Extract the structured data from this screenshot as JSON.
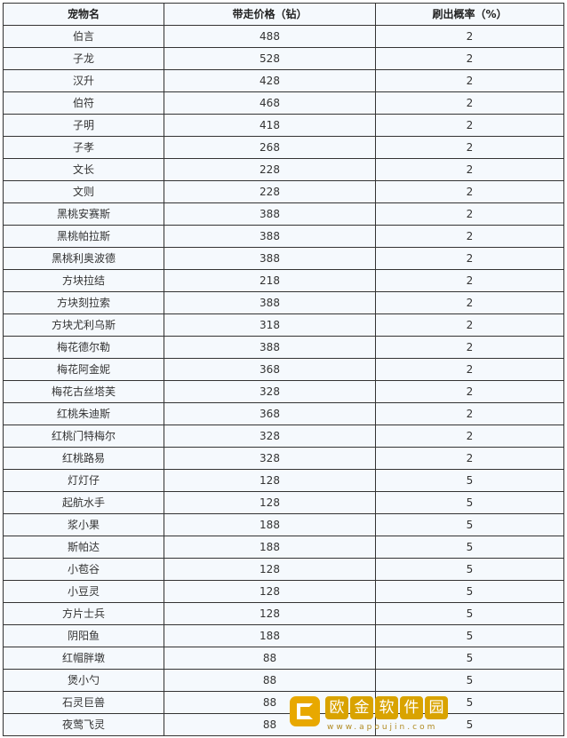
{
  "table": {
    "headers": [
      "宠物名",
      "带走价格（钻）",
      "刷出概率（%）"
    ],
    "rows": [
      [
        "伯言",
        "488",
        "2"
      ],
      [
        "子龙",
        "528",
        "2"
      ],
      [
        "汉升",
        "428",
        "2"
      ],
      [
        "伯符",
        "468",
        "2"
      ],
      [
        "子明",
        "418",
        "2"
      ],
      [
        "子孝",
        "268",
        "2"
      ],
      [
        "文长",
        "228",
        "2"
      ],
      [
        "文则",
        "228",
        "2"
      ],
      [
        "黑桃安赛斯",
        "388",
        "2"
      ],
      [
        "黑桃帕拉斯",
        "388",
        "2"
      ],
      [
        "黑桃利奥波德",
        "388",
        "2"
      ],
      [
        "方块拉结",
        "218",
        "2"
      ],
      [
        "方块刻拉索",
        "388",
        "2"
      ],
      [
        "方块尤利乌斯",
        "318",
        "2"
      ],
      [
        "梅花德尔勒",
        "388",
        "2"
      ],
      [
        "梅花阿金妮",
        "368",
        "2"
      ],
      [
        "梅花古丝塔芙",
        "328",
        "2"
      ],
      [
        "红桃朱迪斯",
        "368",
        "2"
      ],
      [
        "红桃门特梅尔",
        "328",
        "2"
      ],
      [
        "红桃路易",
        "328",
        "2"
      ],
      [
        "灯灯仔",
        "128",
        "5"
      ],
      [
        "起航水手",
        "128",
        "5"
      ],
      [
        "浆小果",
        "188",
        "5"
      ],
      [
        "斯帕达",
        "188",
        "5"
      ],
      [
        "小苞谷",
        "128",
        "5"
      ],
      [
        "小豆灵",
        "128",
        "5"
      ],
      [
        "方片士兵",
        "128",
        "5"
      ],
      [
        "阴阳鱼",
        "188",
        "5"
      ],
      [
        "红帽胖墩",
        "88",
        "5"
      ],
      [
        "煲小勺",
        "88",
        "5"
      ],
      [
        "石灵巨兽",
        "88",
        "5"
      ],
      [
        "夜莺飞灵",
        "88",
        "5"
      ]
    ]
  },
  "watermark": {
    "text": [
      "欧",
      "金",
      "软",
      "件",
      "园"
    ],
    "url": "www.apoujin.com",
    "color": "#d9a300"
  }
}
